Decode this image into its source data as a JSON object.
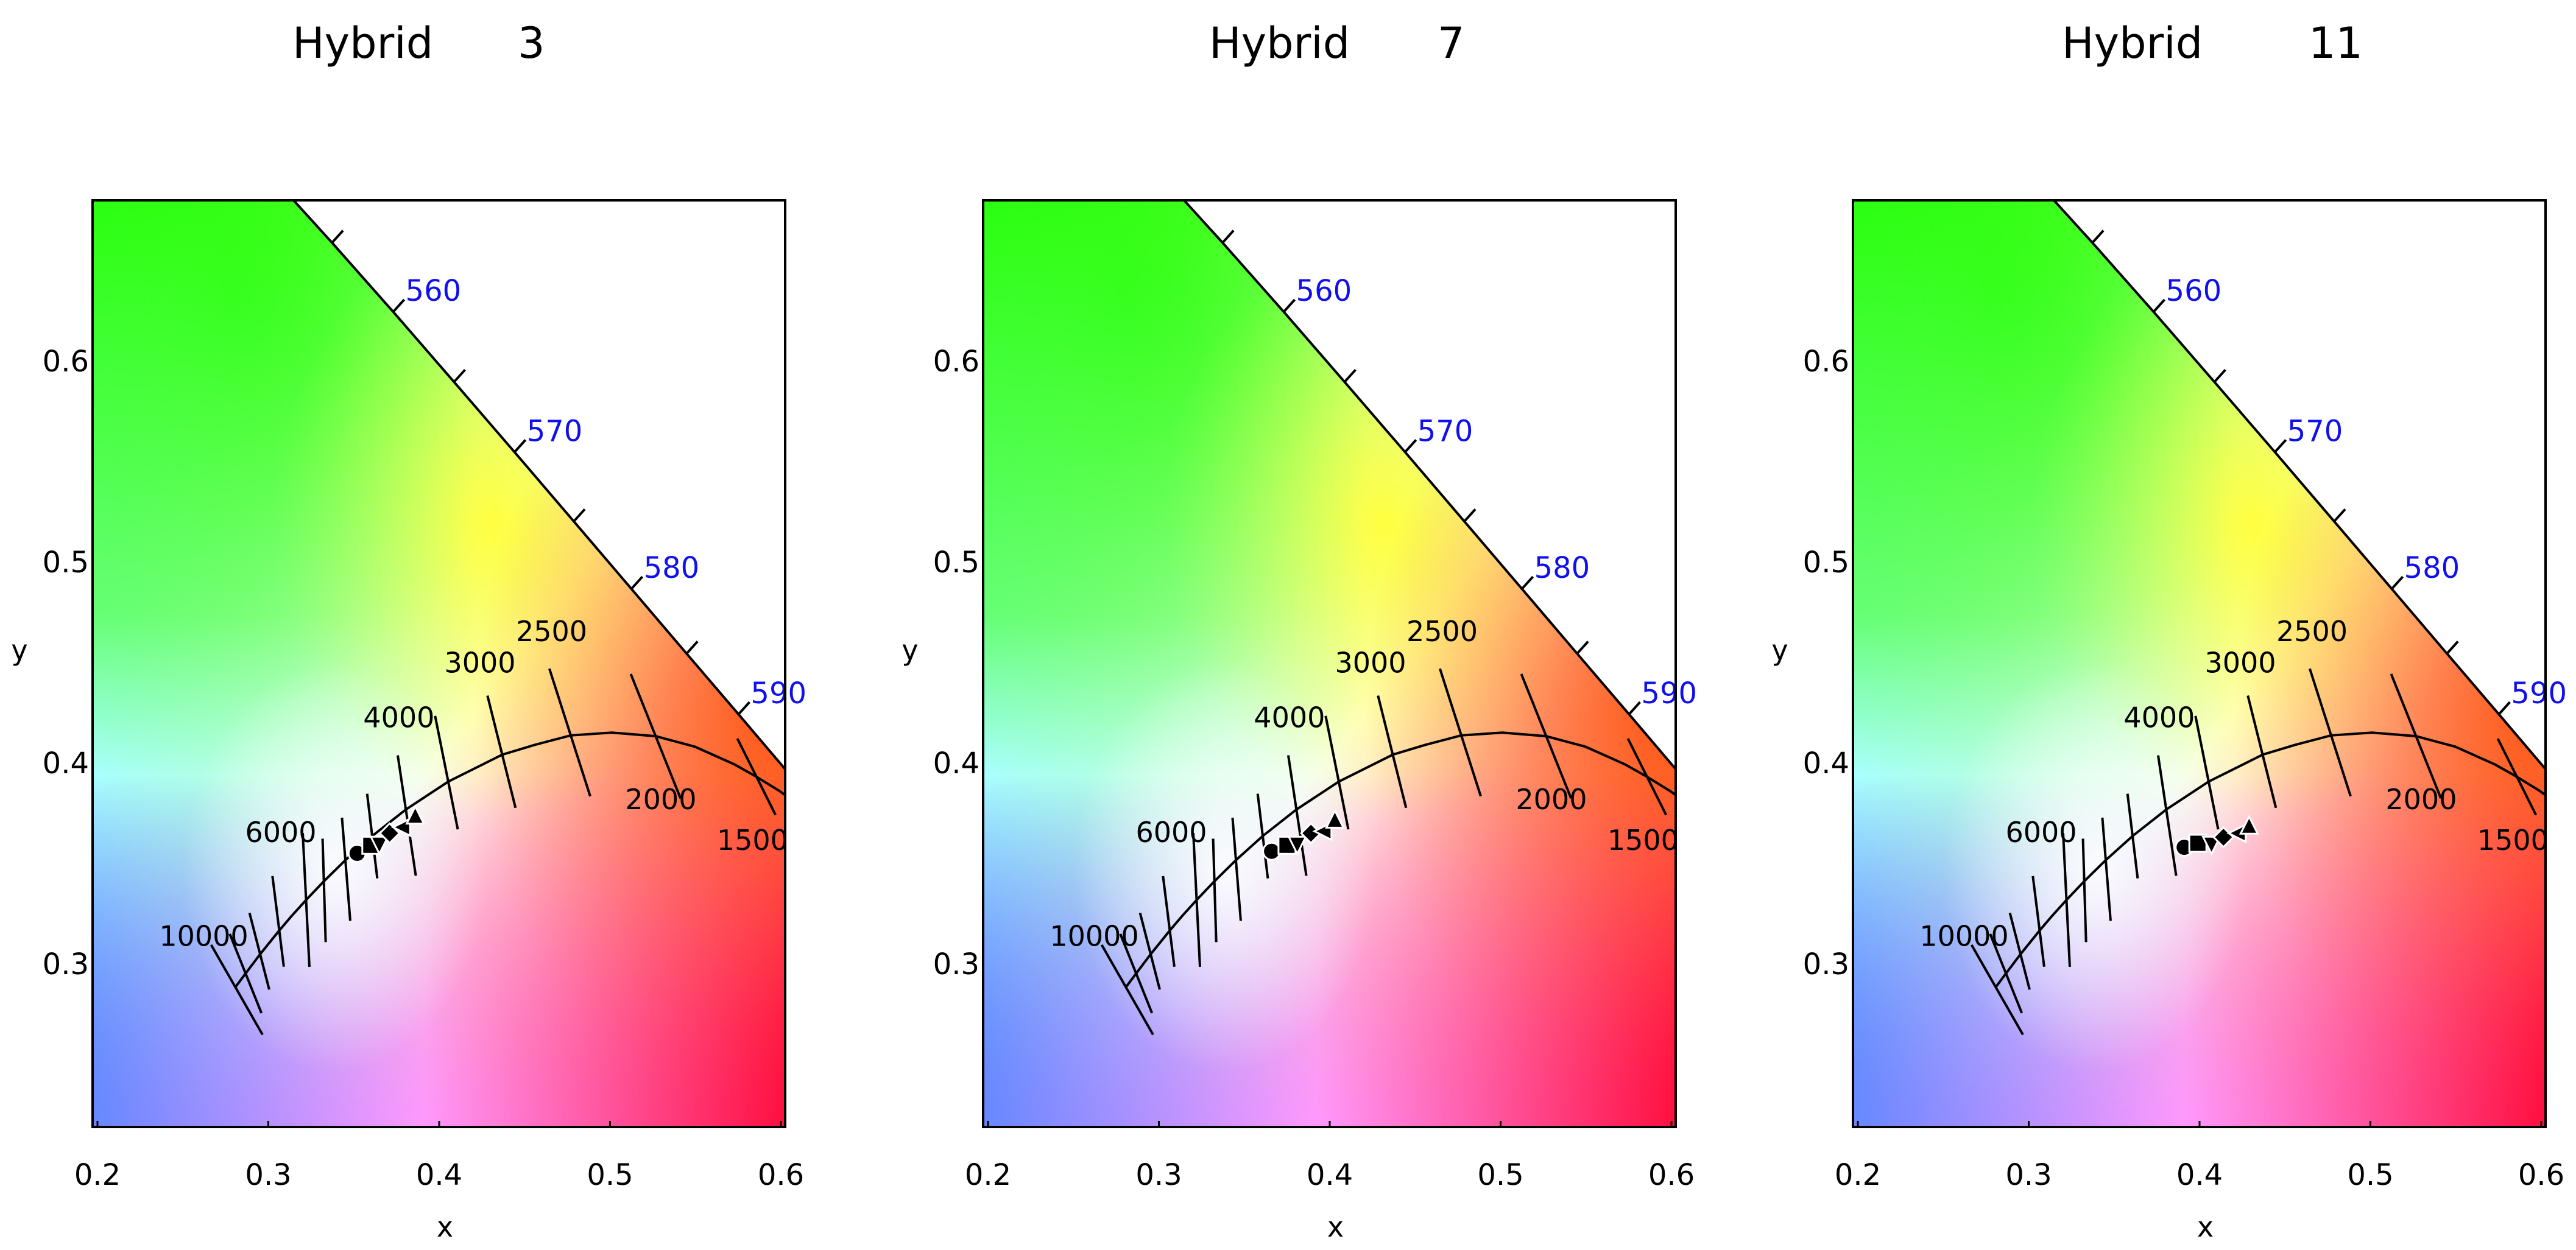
{
  "figure": {
    "panels": [
      {
        "title_word": "Hybrid",
        "title_number": "3"
      },
      {
        "title_word": "Hybrid",
        "title_number": "7"
      },
      {
        "title_word": "Hybrid",
        "title_number": "11"
      }
    ],
    "xlabel": "x",
    "ylabel": "y",
    "colors": {
      "wavelength_label": "#1010ee",
      "axes": "#000000",
      "markers": "#000000"
    }
  },
  "chart_data": [
    {
      "type": "scatter",
      "title": "Hybrid 3",
      "xlabel": "x",
      "ylabel": "y",
      "xlim": [
        0.197,
        0.603
      ],
      "ylim": [
        0.22,
        0.68
      ],
      "xticks": [
        "0.2",
        "0.3",
        "0.4",
        "0.5",
        "0.6"
      ],
      "yticks": [
        "0.3",
        "0.4",
        "0.5",
        "0.6"
      ],
      "background": "CIE 1931 chromaticity diagram (spectral locus with Planckian locus and CCT isotherms)",
      "wavelength_labels": [
        "560",
        "570",
        "580",
        "590"
      ],
      "cct_labels": [
        "10000",
        "6000",
        "4000",
        "3000",
        "2500",
        "2000",
        "1500"
      ],
      "series": [
        {
          "name": "circle",
          "marker": "circle",
          "x": 0.352,
          "y": 0.355
        },
        {
          "name": "square",
          "marker": "square",
          "x": 0.36,
          "y": 0.359
        },
        {
          "name": "down-triangle",
          "marker": "triangle-down",
          "x": 0.365,
          "y": 0.359
        },
        {
          "name": "diamond",
          "marker": "diamond",
          "x": 0.371,
          "y": 0.365
        },
        {
          "name": "left-triangle",
          "marker": "triangle-left",
          "x": 0.378,
          "y": 0.368
        },
        {
          "name": "up-triangle",
          "marker": "triangle-up",
          "x": 0.386,
          "y": 0.374
        }
      ]
    },
    {
      "type": "scatter",
      "title": "Hybrid 7",
      "xlabel": "x",
      "ylabel": "y",
      "xlim": [
        0.197,
        0.603
      ],
      "ylim": [
        0.22,
        0.68
      ],
      "xticks": [
        "0.2",
        "0.3",
        "0.4",
        "0.5",
        "0.6"
      ],
      "yticks": [
        "0.3",
        "0.4",
        "0.5",
        "0.6"
      ],
      "background": "CIE 1931 chromaticity diagram (spectral locus with Planckian locus and CCT isotherms)",
      "wavelength_labels": [
        "560",
        "570",
        "580",
        "590"
      ],
      "cct_labels": [
        "10000",
        "6000",
        "4000",
        "3000",
        "2500",
        "2000",
        "1500"
      ],
      "series": [
        {
          "name": "circle",
          "marker": "circle",
          "x": 0.366,
          "y": 0.356
        },
        {
          "name": "square",
          "marker": "square",
          "x": 0.375,
          "y": 0.359
        },
        {
          "name": "down-triangle",
          "marker": "triangle-down",
          "x": 0.381,
          "y": 0.359
        },
        {
          "name": "diamond",
          "marker": "diamond",
          "x": 0.389,
          "y": 0.365
        },
        {
          "name": "left-triangle",
          "marker": "triangle-left",
          "x": 0.396,
          "y": 0.366
        },
        {
          "name": "up-triangle",
          "marker": "triangle-up",
          "x": 0.403,
          "y": 0.372
        }
      ]
    },
    {
      "type": "scatter",
      "title": "Hybrid 11",
      "xlabel": "x",
      "ylabel": "y",
      "xlim": [
        0.197,
        0.603
      ],
      "ylim": [
        0.22,
        0.68
      ],
      "xticks": [
        "0.2",
        "0.3",
        "0.4",
        "0.5",
        "0.6"
      ],
      "yticks": [
        "0.3",
        "0.4",
        "0.5",
        "0.6"
      ],
      "background": "CIE 1931 chromaticity diagram (spectral locus with Planckian locus and CCT isotherms)",
      "wavelength_labels": [
        "560",
        "570",
        "580",
        "590"
      ],
      "cct_labels": [
        "10000",
        "6000",
        "4000",
        "3000",
        "2500",
        "2000",
        "1500"
      ],
      "series": [
        {
          "name": "circle",
          "marker": "circle",
          "x": 0.391,
          "y": 0.358
        },
        {
          "name": "square",
          "marker": "square",
          "x": 0.399,
          "y": 0.36
        },
        {
          "name": "down-triangle",
          "marker": "triangle-down",
          "x": 0.407,
          "y": 0.359
        },
        {
          "name": "diamond",
          "marker": "diamond",
          "x": 0.414,
          "y": 0.363
        },
        {
          "name": "left-triangle",
          "marker": "triangle-left",
          "x": 0.422,
          "y": 0.365
        },
        {
          "name": "up-triangle",
          "marker": "triangle-up",
          "x": 0.429,
          "y": 0.369
        }
      ]
    }
  ]
}
